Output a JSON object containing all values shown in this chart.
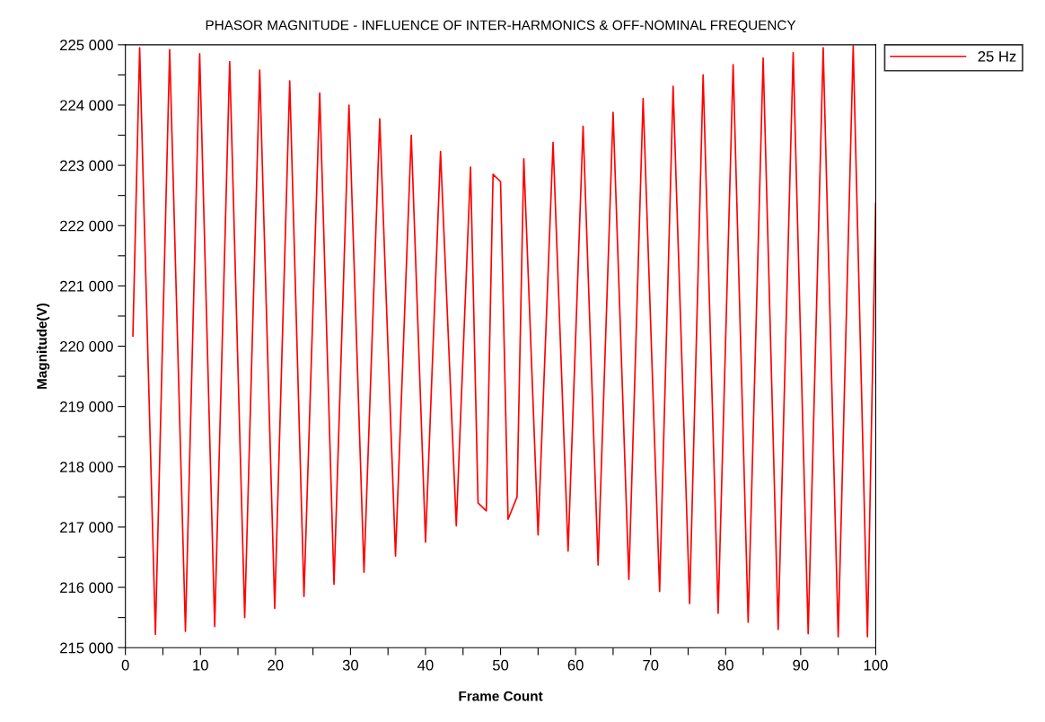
{
  "chart_data": {
    "type": "line",
    "title": "PHASOR MAGNITUDE - INFLUENCE OF INTER-HARMONICS & OFF-NOMINAL FREQUENCY",
    "xlabel": "Frame Count",
    "ylabel": "Magnitude(V)",
    "series": [
      {
        "name": "25 Hz",
        "color": "#ff0000",
        "x": [
          1,
          1.9,
          4,
          5.9,
          8,
          9.9,
          11.9,
          13.9,
          15.9,
          17.9,
          19.9,
          21.9,
          23.8,
          25.9,
          27.8,
          29.8,
          31.8,
          33.9,
          36,
          38.1,
          40,
          42,
          44.1,
          46,
          47,
          48.1,
          49,
          50,
          51,
          52.2,
          53.1,
          55,
          57,
          59,
          61,
          63,
          65,
          67.1,
          69,
          71.2,
          73,
          75.2,
          77,
          79,
          81,
          83,
          85,
          87,
          89,
          91,
          93,
          95,
          97,
          98.9,
          100
        ],
        "values": [
          220170,
          224950,
          215220,
          224920,
          215270,
          224850,
          215350,
          224720,
          215500,
          224580,
          215650,
          224400,
          215850,
          224200,
          216050,
          224000,
          216250,
          223770,
          216520,
          223500,
          216750,
          223230,
          217020,
          222970,
          217400,
          217270,
          222850,
          222730,
          217130,
          217500,
          223110,
          216870,
          223380,
          216600,
          223650,
          216370,
          223880,
          216130,
          224110,
          215930,
          224310,
          215730,
          224500,
          215570,
          224670,
          215420,
          224780,
          215300,
          224870,
          215230,
          224950,
          215180,
          224980,
          215180,
          222370
        ]
      }
    ],
    "xlim": [
      0,
      100
    ],
    "ylim": [
      215000,
      225000
    ],
    "xticks": [
      0,
      {
        "value": 5,
        "label": null
      },
      10,
      {
        "value": 15,
        "label": null
      },
      20,
      {
        "value": 25,
        "label": null
      },
      30,
      {
        "value": 35,
        "label": null
      },
      40,
      {
        "value": 45,
        "label": null
      },
      50,
      {
        "value": 55,
        "label": null
      },
      60,
      {
        "value": 65,
        "label": null
      },
      70,
      {
        "value": 75,
        "label": null
      },
      80,
      {
        "value": 85,
        "label": null
      },
      90,
      {
        "value": 95,
        "label": null
      },
      100
    ],
    "yticks": [
      {
        "value": 215000,
        "label": "215 000"
      },
      {
        "value": 215500,
        "label": null
      },
      {
        "value": 216000,
        "label": "216 000"
      },
      {
        "value": 216500,
        "label": null
      },
      {
        "value": 217000,
        "label": "217 000"
      },
      {
        "value": 217500,
        "label": null
      },
      {
        "value": 218000,
        "label": "218 000"
      },
      {
        "value": 218500,
        "label": null
      },
      {
        "value": 219000,
        "label": "219 000"
      },
      {
        "value": 219500,
        "label": null
      },
      {
        "value": 220000,
        "label": "220 000"
      },
      {
        "value": 220500,
        "label": null
      },
      {
        "value": 221000,
        "label": "221 000"
      },
      {
        "value": 221500,
        "label": null
      },
      {
        "value": 222000,
        "label": "222 000"
      },
      {
        "value": 222500,
        "label": null
      },
      {
        "value": 223000,
        "label": "223 000"
      },
      {
        "value": 223500,
        "label": null
      },
      {
        "value": 224000,
        "label": "224 000"
      },
      {
        "value": 224500,
        "label": null
      },
      {
        "value": 225000,
        "label": "225 000"
      }
    ],
    "grid": false,
    "legend": "top right",
    "marker": "none",
    "line_style": "solid"
  }
}
